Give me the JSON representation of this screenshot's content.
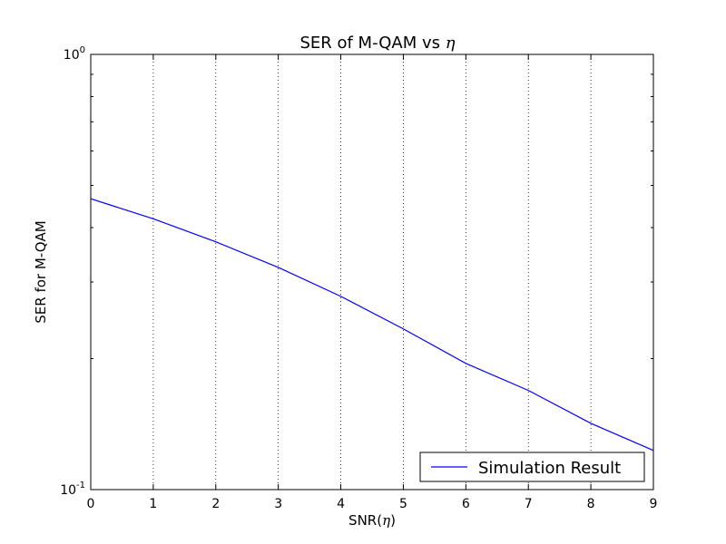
{
  "chart_data": {
    "type": "line",
    "title": "SER of M-QAM vs η",
    "title_prefix": "SER of M-QAM vs ",
    "title_symbol": "η",
    "xlabel": "SNR(η)",
    "xlabel_prefix": "SNR(",
    "xlabel_symbol": "η",
    "xlabel_suffix": ")",
    "ylabel": "SER for M-QAM",
    "y_scale": "log",
    "xlim": [
      0,
      9
    ],
    "ylim": [
      0.1,
      1
    ],
    "x_ticks": [
      "0",
      "1",
      "2",
      "3",
      "4",
      "5",
      "6",
      "7",
      "8",
      "9"
    ],
    "y_ticks": [
      {
        "base": "10",
        "exp": "0"
      },
      {
        "base": "10",
        "exp": "-1"
      }
    ],
    "grid": "vertical dotted",
    "legend_position": "lower-right",
    "series": [
      {
        "name": "Simulation Result",
        "color": "#0000ff",
        "x": [
          0,
          1,
          2,
          3,
          4,
          5,
          6,
          7,
          8,
          9
        ],
        "y": [
          0.466,
          0.419,
          0.371,
          0.324,
          0.278,
          0.234,
          0.195,
          0.169,
          0.142,
          0.123
        ]
      }
    ]
  }
}
